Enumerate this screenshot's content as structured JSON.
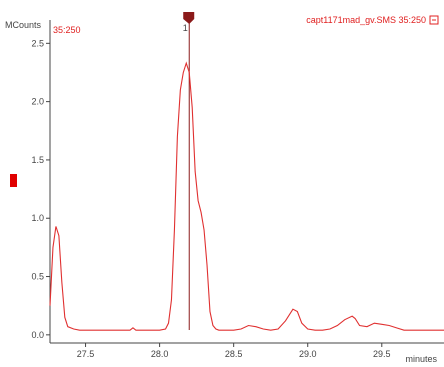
{
  "chart_data": {
    "type": "line",
    "ylabel": "MCounts",
    "xlabel": "minutes",
    "series_label": "35:250",
    "trace_name": "capt1171mad_gv.SMS 35:250",
    "xlim": [
      27.26,
      29.92
    ],
    "ylim": [
      -0.07,
      2.7
    ],
    "x_ticks": [
      27.5,
      28.0,
      28.5,
      29.0,
      29.5
    ],
    "x_tick_labels": [
      "27.5",
      "28.0",
      "28.5",
      "29.0",
      "29.5"
    ],
    "y_ticks": [
      0.0,
      0.5,
      1.0,
      1.5,
      2.0,
      2.5
    ],
    "y_tick_labels": [
      "0.0",
      "0.5",
      "1.0",
      "1.5",
      "2.0",
      "2.5"
    ],
    "peak_marker": {
      "x": 28.2,
      "label": "1"
    },
    "colors": {
      "series": "#e03030",
      "marker": "#8b1a1a",
      "axis": "#444444",
      "label": "#e02020"
    },
    "series": [
      {
        "x": [
          27.26,
          27.28,
          27.3,
          27.32,
          27.34,
          27.36,
          27.38,
          27.42,
          27.46,
          27.5,
          27.6,
          27.7,
          27.8,
          27.82,
          27.84,
          27.9,
          28.0,
          28.04,
          28.06,
          28.08,
          28.1,
          28.12,
          28.14,
          28.16,
          28.18,
          28.2,
          28.22,
          28.24,
          28.26,
          28.28,
          28.3,
          28.32,
          28.34,
          28.36,
          28.38,
          28.4,
          28.45,
          28.5,
          28.55,
          28.6,
          28.65,
          28.7,
          28.75,
          28.8,
          28.85,
          28.9,
          28.93,
          28.96,
          29.0,
          29.05,
          29.1,
          29.15,
          29.2,
          29.25,
          29.3,
          29.32,
          29.35,
          29.4,
          29.45,
          29.5,
          29.55,
          29.6,
          29.65,
          29.7,
          29.75,
          29.8,
          29.85,
          29.92
        ],
        "values": [
          0.25,
          0.75,
          0.93,
          0.85,
          0.45,
          0.15,
          0.07,
          0.05,
          0.04,
          0.04,
          0.04,
          0.04,
          0.04,
          0.06,
          0.04,
          0.04,
          0.04,
          0.05,
          0.1,
          0.3,
          0.9,
          1.7,
          2.1,
          2.25,
          2.33,
          2.25,
          1.95,
          1.4,
          1.15,
          1.05,
          0.9,
          0.6,
          0.2,
          0.08,
          0.05,
          0.04,
          0.04,
          0.04,
          0.05,
          0.08,
          0.07,
          0.05,
          0.04,
          0.05,
          0.12,
          0.22,
          0.2,
          0.1,
          0.05,
          0.04,
          0.04,
          0.05,
          0.08,
          0.13,
          0.16,
          0.14,
          0.08,
          0.07,
          0.1,
          0.09,
          0.08,
          0.06,
          0.04,
          0.04,
          0.04,
          0.04,
          0.04,
          0.04
        ]
      }
    ]
  }
}
